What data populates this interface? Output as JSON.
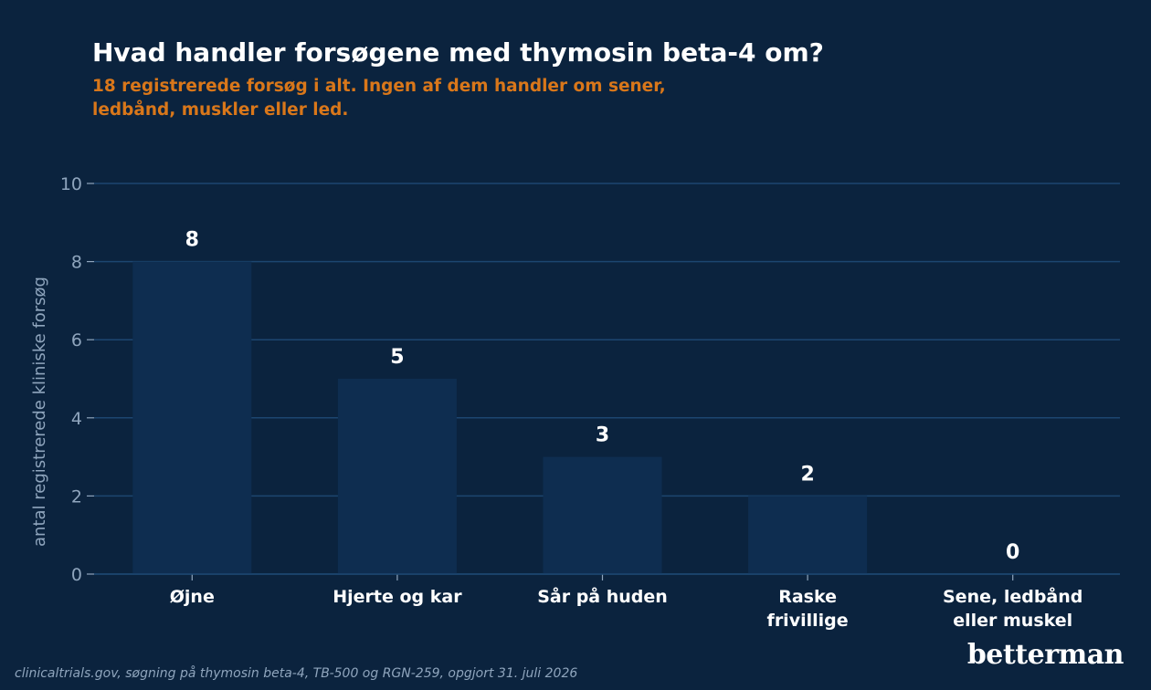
{
  "header": {
    "title": "Hvad handler forsøgene med thymosin beta-4 om?",
    "subtitle": "18 registrerede forsøg i alt. Ingen af dem handler om sener, ledbånd, muskler eller led."
  },
  "footer": {
    "source": "clinicaltrials.gov, søgning på thymosin beta-4, TB-500 og RGN-259, opgjort 31. juli 2026",
    "brand": "betterman"
  },
  "colors": {
    "background": "#0b233e",
    "bar": "#0e2d50",
    "grid": "#1c4670",
    "subtitle": "#d9771a",
    "axis_text": "#8fa5bd"
  },
  "chart_data": {
    "type": "bar",
    "title": "Hvad handler forsøgene med thymosin beta-4 om?",
    "subtitle": "18 registrerede forsøg i alt. Ingen af dem handler om sener, ledbånd, muskler eller led.",
    "categories": [
      [
        "Øjne"
      ],
      [
        "Hjerte og kar"
      ],
      [
        "Sår på huden"
      ],
      [
        "Raske",
        "frivillige"
      ],
      [
        "Sene, ledbånd",
        "eller muskel"
      ]
    ],
    "values": [
      8,
      5,
      3,
      2,
      0
    ],
    "xlabel": "",
    "ylabel": "antal registrerede kliniske forsøg",
    "ylim": [
      0,
      10
    ],
    "yticks": [
      0,
      2,
      4,
      6,
      8,
      10
    ],
    "grid": true,
    "legend": "none"
  }
}
